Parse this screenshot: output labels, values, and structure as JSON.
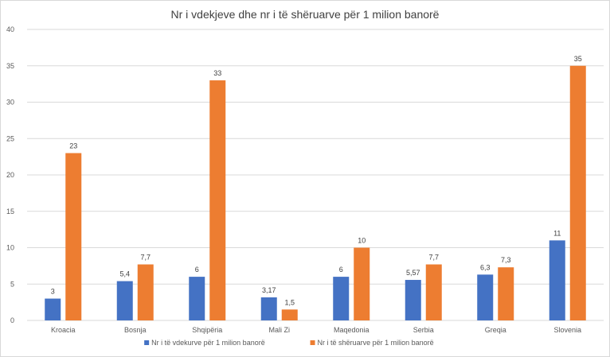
{
  "chart_data": {
    "type": "bar",
    "title": "Nr i vdekjeve dhe nr i të shëruarve për 1 milion banorë",
    "xlabel": "",
    "ylabel": "",
    "ylim": [
      0,
      40
    ],
    "yticks": [
      0,
      5,
      10,
      15,
      20,
      25,
      30,
      35,
      40
    ],
    "grid": true,
    "legend_position": "bottom",
    "categories": [
      "Kroacia",
      "Bosnja",
      "Shqipëria",
      "Mali Zi",
      "Maqedonia",
      "Serbia",
      "Greqia",
      "Slovenia"
    ],
    "series": [
      {
        "name": "Nr i të vdekurve për 1 milion banorë",
        "color": "#4472c4",
        "values": [
          3,
          5.4,
          6,
          3.17,
          6,
          5.57,
          6.3,
          11
        ],
        "labels": [
          "3",
          "5,4",
          "6",
          "3,17",
          "6",
          "5,57",
          "6,3",
          "11"
        ]
      },
      {
        "name": "Nr i të shëruarve për 1 milion banorë",
        "color": "#ed7d31",
        "values": [
          23,
          7.7,
          33,
          1.5,
          10,
          7.7,
          7.3,
          35
        ],
        "labels": [
          "23",
          "7,7",
          "33",
          "1,5",
          "10",
          "7,7",
          "7,3",
          "35"
        ]
      }
    ]
  }
}
